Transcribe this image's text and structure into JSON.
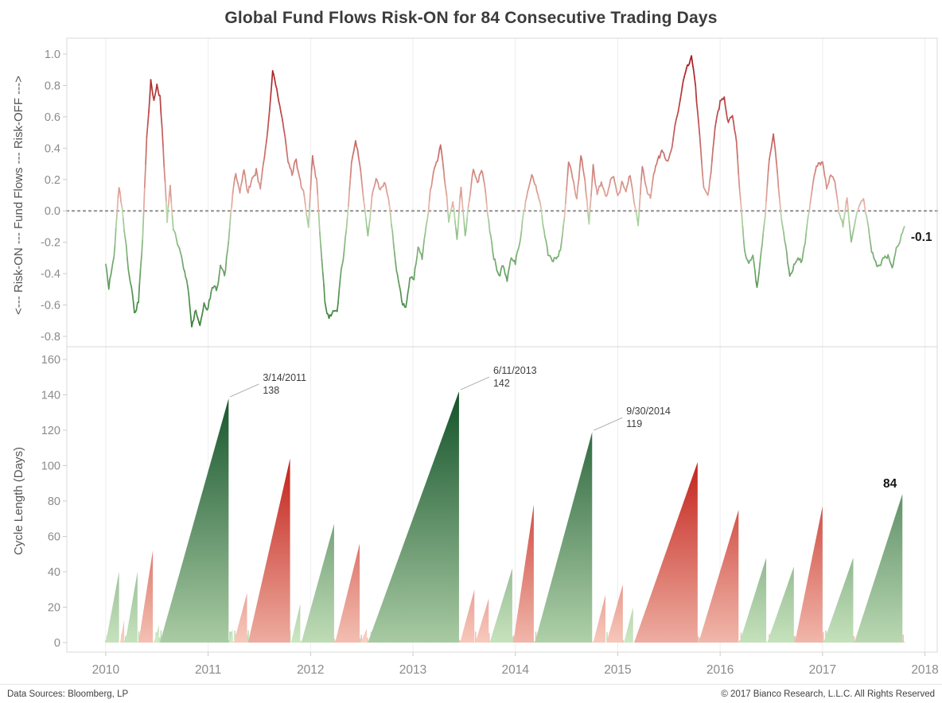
{
  "title": "Global Fund Flows Risk-ON for 84 Consecutive Trading Days",
  "footer": {
    "left": "Data Sources: Bloomberg, LP",
    "right": "© 2017 Bianco Research, L.L.C. All Rights Reserved"
  },
  "x_axis": {
    "range": [
      2009.62,
      2018.12
    ],
    "ticks": [
      "2010",
      "2011",
      "2012",
      "2013",
      "2014",
      "2015",
      "2016",
      "2017",
      "2018"
    ]
  },
  "chart_data": [
    {
      "type": "line",
      "name": "fund-flows-oscillator",
      "ylabel": "<--- Risk-ON --- Fund Flows --- Risk-OFF --->",
      "ylim": [
        -0.8,
        1.0
      ],
      "yticks": [
        "1.0",
        "0.8",
        "0.6",
        "0.4",
        "0.2",
        "0.0",
        "-0.2",
        "-0.4",
        "-0.6",
        "-0.8"
      ],
      "zero_line": true,
      "last_value_label": "-0.1",
      "colors": {
        "pos_low": "#e9c0b2",
        "pos_high": "#a6161c",
        "neg_low": "#bcdcae",
        "neg_high": "#2f7a33"
      },
      "points": [
        [
          2010.0,
          -0.33
        ],
        [
          2010.03,
          -0.47
        ],
        [
          2010.08,
          -0.25
        ],
        [
          2010.13,
          0.17
        ],
        [
          2010.17,
          -0.05
        ],
        [
          2010.22,
          -0.35
        ],
        [
          2010.28,
          -0.63
        ],
        [
          2010.32,
          -0.55
        ],
        [
          2010.36,
          -0.15
        ],
        [
          2010.4,
          0.45
        ],
        [
          2010.44,
          0.84
        ],
        [
          2010.47,
          0.68
        ],
        [
          2010.5,
          0.76
        ],
        [
          2010.53,
          0.72
        ],
        [
          2010.56,
          0.4
        ],
        [
          2010.6,
          -0.05
        ],
        [
          2010.63,
          0.18
        ],
        [
          2010.66,
          -0.12
        ],
        [
          2010.7,
          -0.22
        ],
        [
          2010.74,
          -0.3
        ],
        [
          2010.79,
          -0.45
        ],
        [
          2010.84,
          -0.72
        ],
        [
          2010.88,
          -0.6
        ],
        [
          2010.92,
          -0.68
        ],
        [
          2010.96,
          -0.55
        ],
        [
          2011.0,
          -0.6
        ],
        [
          2011.04,
          -0.48
        ],
        [
          2011.08,
          -0.52
        ],
        [
          2011.12,
          -0.35
        ],
        [
          2011.16,
          -0.42
        ],
        [
          2011.2,
          -0.18
        ],
        [
          2011.24,
          0.1
        ],
        [
          2011.27,
          0.22
        ],
        [
          2011.31,
          0.08
        ],
        [
          2011.35,
          0.25
        ],
        [
          2011.39,
          0.12
        ],
        [
          2011.43,
          0.2
        ],
        [
          2011.47,
          0.28
        ],
        [
          2011.51,
          0.18
        ],
        [
          2011.55,
          0.32
        ],
        [
          2011.59,
          0.55
        ],
        [
          2011.63,
          0.86
        ],
        [
          2011.66,
          0.78
        ],
        [
          2011.7,
          0.62
        ],
        [
          2011.74,
          0.48
        ],
        [
          2011.78,
          0.3
        ],
        [
          2011.82,
          0.2
        ],
        [
          2011.86,
          0.32
        ],
        [
          2011.9,
          0.18
        ],
        [
          2011.94,
          0.08
        ],
        [
          2011.98,
          -0.08
        ],
        [
          2012.02,
          0.35
        ],
        [
          2012.06,
          0.22
        ],
        [
          2012.1,
          -0.2
        ],
        [
          2012.14,
          -0.55
        ],
        [
          2012.18,
          -0.66
        ],
        [
          2012.22,
          -0.62
        ],
        [
          2012.26,
          -0.68
        ],
        [
          2012.3,
          -0.42
        ],
        [
          2012.35,
          -0.15
        ],
        [
          2012.4,
          0.3
        ],
        [
          2012.44,
          0.44
        ],
        [
          2012.48,
          0.3
        ],
        [
          2012.52,
          0.05
        ],
        [
          2012.56,
          -0.15
        ],
        [
          2012.6,
          0.08
        ],
        [
          2012.64,
          0.2
        ],
        [
          2012.68,
          0.1
        ],
        [
          2012.72,
          0.16
        ],
        [
          2012.76,
          0.05
        ],
        [
          2012.8,
          -0.18
        ],
        [
          2012.85,
          -0.42
        ],
        [
          2012.89,
          -0.57
        ],
        [
          2012.93,
          -0.6
        ],
        [
          2012.97,
          -0.38
        ],
        [
          2013.01,
          -0.42
        ],
        [
          2013.05,
          -0.22
        ],
        [
          2013.09,
          -0.28
        ],
        [
          2013.13,
          -0.1
        ],
        [
          2013.17,
          0.12
        ],
        [
          2013.22,
          0.25
        ],
        [
          2013.27,
          0.37
        ],
        [
          2013.31,
          0.18
        ],
        [
          2013.35,
          -0.08
        ],
        [
          2013.39,
          0.08
        ],
        [
          2013.43,
          -0.15
        ],
        [
          2013.47,
          0.18
        ],
        [
          2013.51,
          -0.18
        ],
        [
          2013.55,
          0.05
        ],
        [
          2013.59,
          0.22
        ],
        [
          2013.63,
          0.15
        ],
        [
          2013.67,
          0.26
        ],
        [
          2013.71,
          0.12
        ],
        [
          2013.75,
          -0.12
        ],
        [
          2013.79,
          -0.28
        ],
        [
          2013.84,
          -0.38
        ],
        [
          2013.88,
          -0.32
        ],
        [
          2013.92,
          -0.42
        ],
        [
          2013.96,
          -0.3
        ],
        [
          2014.0,
          -0.34
        ],
        [
          2014.04,
          -0.18
        ],
        [
          2014.08,
          0.02
        ],
        [
          2014.12,
          0.15
        ],
        [
          2014.16,
          0.28
        ],
        [
          2014.2,
          0.2
        ],
        [
          2014.24,
          0.1
        ],
        [
          2014.28,
          -0.12
        ],
        [
          2014.32,
          -0.28
        ],
        [
          2014.36,
          -0.36
        ],
        [
          2014.4,
          -0.3
        ],
        [
          2014.44,
          -0.22
        ],
        [
          2014.48,
          0.0
        ],
        [
          2014.52,
          0.28
        ],
        [
          2014.56,
          0.18
        ],
        [
          2014.6,
          0.08
        ],
        [
          2014.64,
          0.35
        ],
        [
          2014.68,
          0.22
        ],
        [
          2014.72,
          -0.08
        ],
        [
          2014.76,
          0.28
        ],
        [
          2014.8,
          0.12
        ],
        [
          2014.84,
          0.18
        ],
        [
          2014.88,
          0.08
        ],
        [
          2014.92,
          0.15
        ],
        [
          2014.96,
          0.22
        ],
        [
          2015.0,
          0.12
        ],
        [
          2015.04,
          0.18
        ],
        [
          2015.08,
          0.1
        ],
        [
          2015.12,
          0.22
        ],
        [
          2015.16,
          0.05
        ],
        [
          2015.2,
          -0.08
        ],
        [
          2015.24,
          0.28
        ],
        [
          2015.28,
          0.18
        ],
        [
          2015.32,
          0.1
        ],
        [
          2015.36,
          0.22
        ],
        [
          2015.4,
          0.3
        ],
        [
          2015.44,
          0.35
        ],
        [
          2015.48,
          0.28
        ],
        [
          2015.52,
          0.38
        ],
        [
          2015.56,
          0.5
        ],
        [
          2015.6,
          0.62
        ],
        [
          2015.64,
          0.78
        ],
        [
          2015.68,
          0.88
        ],
        [
          2015.72,
          0.97
        ],
        [
          2015.76,
          0.8
        ],
        [
          2015.8,
          0.45
        ],
        [
          2015.84,
          0.1
        ],
        [
          2015.88,
          0.05
        ],
        [
          2015.92,
          0.3
        ],
        [
          2015.96,
          0.55
        ],
        [
          2016.0,
          0.68
        ],
        [
          2016.04,
          0.73
        ],
        [
          2016.08,
          0.58
        ],
        [
          2016.12,
          0.62
        ],
        [
          2016.16,
          0.45
        ],
        [
          2016.2,
          0.1
        ],
        [
          2016.24,
          -0.25
        ],
        [
          2016.28,
          -0.32
        ],
        [
          2016.32,
          -0.25
        ],
        [
          2016.36,
          -0.45
        ],
        [
          2016.4,
          -0.28
        ],
        [
          2016.44,
          -0.08
        ],
        [
          2016.48,
          0.3
        ],
        [
          2016.52,
          0.44
        ],
        [
          2016.56,
          0.22
        ],
        [
          2016.6,
          -0.05
        ],
        [
          2016.64,
          -0.25
        ],
        [
          2016.68,
          -0.45
        ],
        [
          2016.72,
          -0.35
        ],
        [
          2016.76,
          -0.25
        ],
        [
          2016.8,
          -0.3
        ],
        [
          2016.84,
          -0.12
        ],
        [
          2016.88,
          0.05
        ],
        [
          2016.92,
          0.2
        ],
        [
          2016.96,
          0.28
        ],
        [
          2017.0,
          0.3
        ],
        [
          2017.04,
          0.12
        ],
        [
          2017.08,
          0.22
        ],
        [
          2017.12,
          0.15
        ],
        [
          2017.16,
          -0.02
        ],
        [
          2017.2,
          -0.12
        ],
        [
          2017.24,
          0.08
        ],
        [
          2017.28,
          -0.15
        ],
        [
          2017.32,
          -0.05
        ],
        [
          2017.36,
          0.06
        ],
        [
          2017.4,
          0.12
        ],
        [
          2017.44,
          -0.05
        ],
        [
          2017.48,
          -0.22
        ],
        [
          2017.52,
          -0.32
        ],
        [
          2017.56,
          -0.38
        ],
        [
          2017.6,
          -0.3
        ],
        [
          2017.64,
          -0.25
        ],
        [
          2017.68,
          -0.33
        ],
        [
          2017.72,
          -0.25
        ],
        [
          2017.76,
          -0.18
        ],
        [
          2017.8,
          -0.1
        ]
      ]
    },
    {
      "type": "area",
      "name": "risk-cycle-length",
      "ylabel": "Cycle Length (Days)",
      "ylim": [
        0,
        160
      ],
      "yticks": [
        "160",
        "140",
        "120",
        "100",
        "80",
        "60",
        "40",
        "20",
        "0"
      ],
      "colors": {
        "green_low": "#d2ecc6",
        "green_high": "#135229",
        "red_low": "#fad3c6",
        "red_high": "#c2221a",
        "green_max": 142,
        "red_max": 104
      },
      "cycles": [
        {
          "start": 2010.0,
          "peak": 2010.13,
          "value": 40,
          "color": "green"
        },
        {
          "start": 2010.14,
          "peak": 2010.18,
          "value": 13,
          "color": "red"
        },
        {
          "start": 2010.19,
          "peak": 2010.31,
          "value": 40,
          "color": "green"
        },
        {
          "start": 2010.32,
          "peak": 2010.46,
          "value": 52,
          "color": "red"
        },
        {
          "start": 2010.47,
          "peak": 2010.52,
          "value": 10,
          "color": "green"
        },
        {
          "start": 2010.53,
          "peak": 2011.2,
          "value": 138,
          "color": "green"
        },
        {
          "start": 2011.21,
          "peak": 2011.24,
          "value": 8,
          "color": "green"
        },
        {
          "start": 2011.25,
          "peak": 2011.38,
          "value": 28,
          "color": "red"
        },
        {
          "start": 2011.39,
          "peak": 2011.8,
          "value": 104,
          "color": "red"
        },
        {
          "start": 2011.81,
          "peak": 2011.9,
          "value": 22,
          "color": "green"
        },
        {
          "start": 2011.91,
          "peak": 2012.23,
          "value": 67,
          "color": "green"
        },
        {
          "start": 2012.24,
          "peak": 2012.48,
          "value": 56,
          "color": "red"
        },
        {
          "start": 2012.49,
          "peak": 2012.55,
          "value": 8,
          "color": "red"
        },
        {
          "start": 2012.56,
          "peak": 2013.45,
          "value": 142,
          "color": "green"
        },
        {
          "start": 2013.46,
          "peak": 2013.6,
          "value": 30,
          "color": "red"
        },
        {
          "start": 2013.61,
          "peak": 2013.74,
          "value": 25,
          "color": "red"
        },
        {
          "start": 2013.75,
          "peak": 2013.97,
          "value": 42,
          "color": "green"
        },
        {
          "start": 2013.98,
          "peak": 2014.18,
          "value": 78,
          "color": "red"
        },
        {
          "start": 2014.19,
          "peak": 2014.75,
          "value": 119,
          "color": "green"
        },
        {
          "start": 2014.76,
          "peak": 2014.88,
          "value": 27,
          "color": "red"
        },
        {
          "start": 2014.89,
          "peak": 2015.05,
          "value": 33,
          "color": "red"
        },
        {
          "start": 2015.06,
          "peak": 2015.15,
          "value": 20,
          "color": "green"
        },
        {
          "start": 2015.16,
          "peak": 2015.78,
          "value": 102,
          "color": "red"
        },
        {
          "start": 2015.79,
          "peak": 2016.18,
          "value": 75,
          "color": "red"
        },
        {
          "start": 2016.19,
          "peak": 2016.45,
          "value": 48,
          "color": "green"
        },
        {
          "start": 2016.46,
          "peak": 2016.72,
          "value": 43,
          "color": "green"
        },
        {
          "start": 2016.73,
          "peak": 2017.0,
          "value": 77,
          "color": "red"
        },
        {
          "start": 2017.01,
          "peak": 2017.3,
          "value": 48,
          "color": "green"
        },
        {
          "start": 2017.31,
          "peak": 2017.78,
          "value": 84,
          "color": "green"
        }
      ],
      "annotations": [
        {
          "date": "3/14/2011",
          "value": 138,
          "x": 2011.2
        },
        {
          "date": "6/11/2013",
          "value": 142,
          "x": 2013.45
        },
        {
          "date": "9/30/2014",
          "value": 119,
          "x": 2014.75
        },
        {
          "label": "84",
          "value": 84,
          "x": 2017.78,
          "style": "bold"
        }
      ]
    }
  ]
}
